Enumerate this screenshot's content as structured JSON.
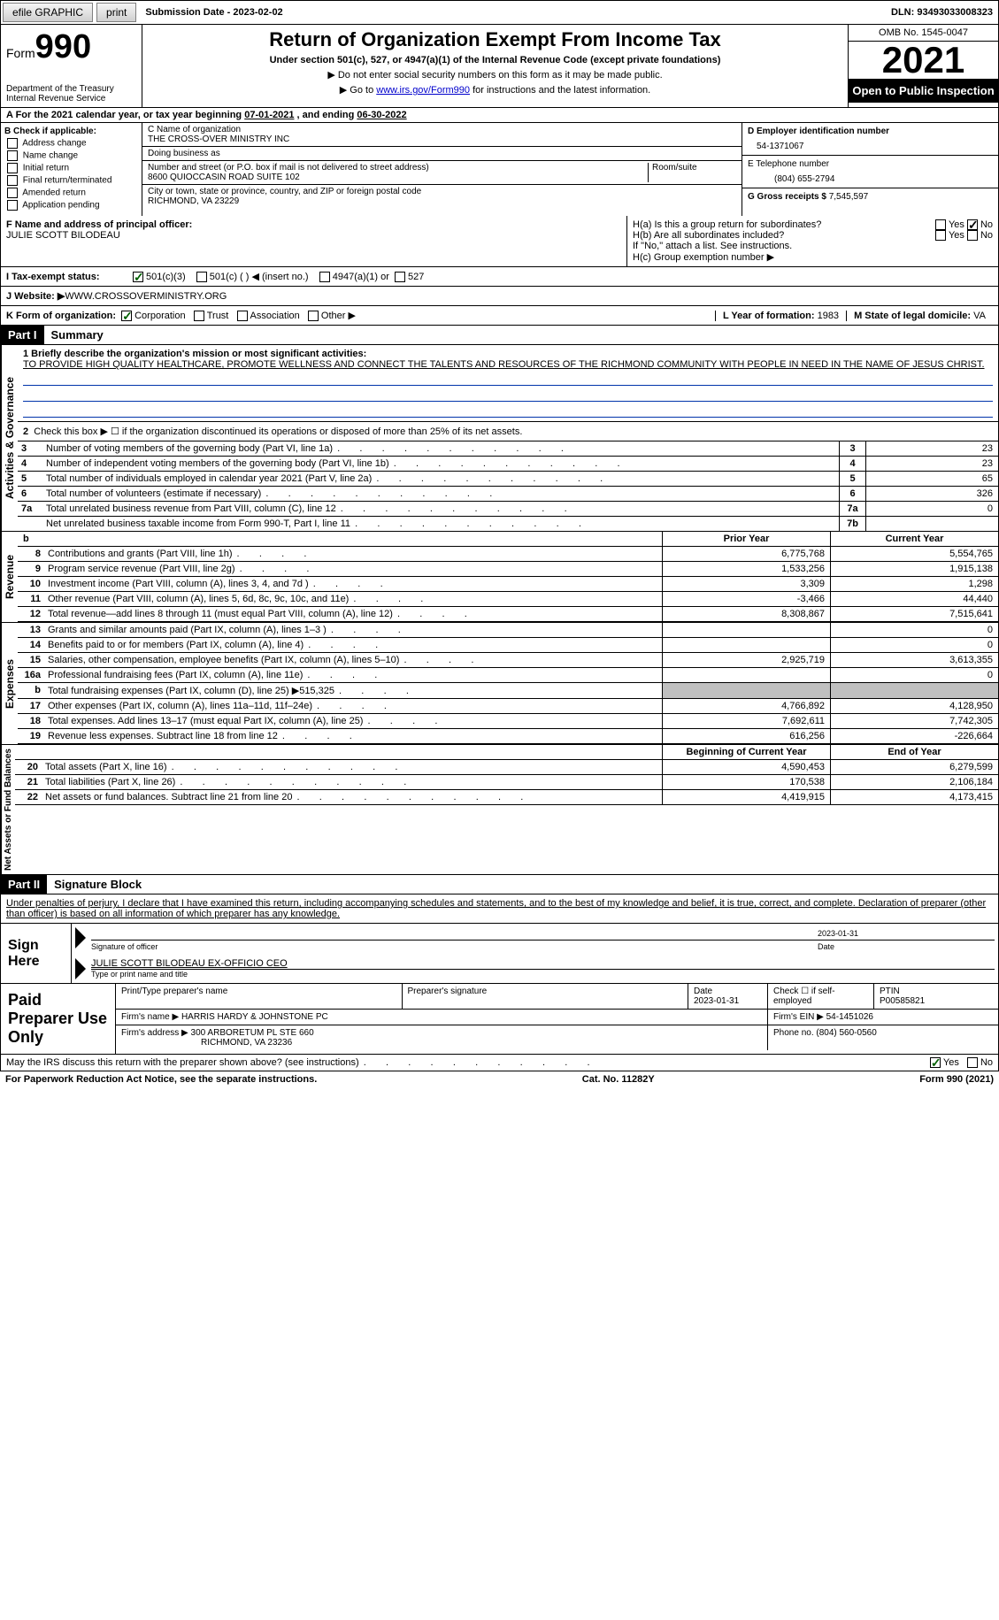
{
  "topbar": {
    "efile": "efile GRAPHIC",
    "print": "print",
    "submission_label": "Submission Date - ",
    "submission_date": "2023-02-02",
    "dln": "DLN: 93493033008323"
  },
  "header": {
    "form_label": "Form",
    "form_number": "990",
    "dept": "Department of the Treasury\nInternal Revenue Service",
    "title": "Return of Organization Exempt From Income Tax",
    "sub": "Under section 501(c), 527, or 4947(a)(1) of the Internal Revenue Code (except private foundations)",
    "note1": "▶ Do not enter social security numbers on this form as it may be made public.",
    "note2_pre": "▶ Go to ",
    "note2_link": "www.irs.gov/Form990",
    "note2_post": " for instructions and the latest information.",
    "omb": "OMB No. 1545-0047",
    "year": "2021",
    "open": "Open to Public Inspection"
  },
  "section_a": {
    "text_pre": "A For the 2021 calendar year, or tax year beginning ",
    "begin": "07-01-2021",
    "mid": "  , and ending ",
    "end": "06-30-2022"
  },
  "col_b": {
    "header": "B Check if applicable:",
    "items": [
      "Address change",
      "Name change",
      "Initial return",
      "Final return/terminated",
      "Amended return",
      "Application pending"
    ]
  },
  "col_c": {
    "name_label": "C Name of organization",
    "name": "THE CROSS-OVER MINISTRY INC",
    "dba_label": "Doing business as",
    "dba": "",
    "addr_label": "Number and street (or P.O. box if mail is not delivered to street address)",
    "room_label": "Room/suite",
    "addr": "8600 QUIOCCASIN ROAD SUITE 102",
    "city_label": "City or town, state or province, country, and ZIP or foreign postal code",
    "city": "RICHMOND, VA  23229"
  },
  "col_d": {
    "d_label": "D Employer identification number",
    "ein": "54-1371067",
    "e_label": "E Telephone number",
    "phone": "(804) 655-2794",
    "g_label": "G Gross receipts $ ",
    "gross": "7,545,597"
  },
  "row_f": {
    "f_label": "F Name and address of principal officer:",
    "officer": "JULIE SCOTT BILODEAU",
    "ha": "H(a)  Is this a group return for subordinates?",
    "ha_no": true,
    "hb": "H(b)  Are all subordinates included?",
    "hb_note": "If \"No,\" attach a list. See instructions.",
    "hc": "H(c)  Group exemption number ▶"
  },
  "row_i": {
    "label": "I   Tax-exempt status:",
    "opt1": "501(c)(3)",
    "opt2": "501(c) (   ) ◀ (insert no.)",
    "opt3": "4947(a)(1) or",
    "opt4": "527"
  },
  "row_j": {
    "label": "J   Website: ▶  ",
    "value": "WWW.CROSSOVERMINISTRY.ORG"
  },
  "row_k": {
    "label": "K Form of organization:",
    "opts": [
      "Corporation",
      "Trust",
      "Association",
      "Other ▶"
    ],
    "l_label": "L Year of formation: ",
    "l_val": "1983",
    "m_label": "M State of legal domicile: ",
    "m_val": "VA"
  },
  "part1": {
    "header": "Part I",
    "title": "Summary",
    "vert1": "Activities & Governance",
    "vert2": "Revenue",
    "vert3": "Expenses",
    "vert4": "Net Assets or Fund Balances",
    "line1_label": "1   Briefly describe the organization's mission or most significant activities:",
    "mission": "TO PROVIDE HIGH QUALITY HEALTHCARE, PROMOTE WELLNESS AND CONNECT THE TALENTS AND RESOURCES OF THE RICHMOND COMMUNITY WITH PEOPLE IN NEED IN THE NAME OF JESUS CHRIST.",
    "line2": "Check this box ▶ ☐  if the organization discontinued its operations or disposed of more than 25% of its net assets.",
    "gov_lines": [
      {
        "n": "3",
        "d": "Number of voting members of the governing body (Part VI, line 1a)",
        "box": "3",
        "v": "23"
      },
      {
        "n": "4",
        "d": "Number of independent voting members of the governing body (Part VI, line 1b)",
        "box": "4",
        "v": "23"
      },
      {
        "n": "5",
        "d": "Total number of individuals employed in calendar year 2021 (Part V, line 2a)",
        "box": "5",
        "v": "65"
      },
      {
        "n": "6",
        "d": "Total number of volunteers (estimate if necessary)",
        "box": "6",
        "v": "326"
      },
      {
        "n": "7a",
        "d": "Total unrelated business revenue from Part VIII, column (C), line 12",
        "box": "7a",
        "v": "0"
      },
      {
        "n": "",
        "d": "Net unrelated business taxable income from Form 990-T, Part I, line 11",
        "box": "7b",
        "v": ""
      }
    ],
    "col_headers": {
      "b": "b",
      "prior": "Prior Year",
      "current": "Current Year"
    },
    "rev_lines": [
      {
        "n": "8",
        "d": "Contributions and grants (Part VIII, line 1h)",
        "p": "6,775,768",
        "c": "5,554,765"
      },
      {
        "n": "9",
        "d": "Program service revenue (Part VIII, line 2g)",
        "p": "1,533,256",
        "c": "1,915,138"
      },
      {
        "n": "10",
        "d": "Investment income (Part VIII, column (A), lines 3, 4, and 7d )",
        "p": "3,309",
        "c": "1,298"
      },
      {
        "n": "11",
        "d": "Other revenue (Part VIII, column (A), lines 5, 6d, 8c, 9c, 10c, and 11e)",
        "p": "-3,466",
        "c": "44,440"
      },
      {
        "n": "12",
        "d": "Total revenue—add lines 8 through 11 (must equal Part VIII, column (A), line 12)",
        "p": "8,308,867",
        "c": "7,515,641"
      }
    ],
    "exp_lines": [
      {
        "n": "13",
        "d": "Grants and similar amounts paid (Part IX, column (A), lines 1–3 )",
        "p": "",
        "c": "0"
      },
      {
        "n": "14",
        "d": "Benefits paid to or for members (Part IX, column (A), line 4)",
        "p": "",
        "c": "0"
      },
      {
        "n": "15",
        "d": "Salaries, other compensation, employee benefits (Part IX, column (A), lines 5–10)",
        "p": "2,925,719",
        "c": "3,613,355"
      },
      {
        "n": "16a",
        "d": "Professional fundraising fees (Part IX, column (A), line 11e)",
        "p": "",
        "c": "0"
      },
      {
        "n": "b",
        "d": "Total fundraising expenses (Part IX, column (D), line 25) ▶515,325",
        "p": "shade",
        "c": "shade"
      },
      {
        "n": "17",
        "d": "Other expenses (Part IX, column (A), lines 11a–11d, 11f–24e)",
        "p": "4,766,892",
        "c": "4,128,950"
      },
      {
        "n": "18",
        "d": "Total expenses. Add lines 13–17 (must equal Part IX, column (A), line 25)",
        "p": "7,692,611",
        "c": "7,742,305"
      },
      {
        "n": "19",
        "d": "Revenue less expenses. Subtract line 18 from line 12",
        "p": "616,256",
        "c": "-226,664"
      }
    ],
    "net_headers": {
      "prior": "Beginning of Current Year",
      "current": "End of Year"
    },
    "net_lines": [
      {
        "n": "20",
        "d": "Total assets (Part X, line 16)",
        "p": "4,590,453",
        "c": "6,279,599"
      },
      {
        "n": "21",
        "d": "Total liabilities (Part X, line 26)",
        "p": "170,538",
        "c": "2,106,184"
      },
      {
        "n": "22",
        "d": "Net assets or fund balances. Subtract line 21 from line 20",
        "p": "4,419,915",
        "c": "4,173,415"
      }
    ]
  },
  "part2": {
    "header": "Part II",
    "title": "Signature Block",
    "decl": "Under penalties of perjury, I declare that I have examined this return, including accompanying schedules and statements, and to the best of my knowledge and belief, it is true, correct, and complete. Declaration of preparer (other than officer) is based on all information of which preparer has any knowledge.",
    "sign_here": "Sign Here",
    "sig_officer": "Signature of officer",
    "sig_date": "Date",
    "sig_date_val": "2023-01-31",
    "officer_name": "JULIE SCOTT BILODEAU  EX-OFFICIO CEO",
    "type_name": "Type or print name and title",
    "paid": "Paid Preparer Use Only",
    "prep_name_label": "Print/Type preparer's name",
    "prep_sig_label": "Preparer's signature",
    "prep_date_label": "Date",
    "prep_date": "2023-01-31",
    "check_if": "Check ☐ if self-employed",
    "ptin_label": "PTIN",
    "ptin": "P00585821",
    "firm_name_label": "Firm's name      ▶ ",
    "firm_name": "HARRIS HARDY & JOHNSTONE PC",
    "firm_ein_label": "Firm's EIN ▶ ",
    "firm_ein": "54-1451026",
    "firm_addr_label": "Firm's address ▶ ",
    "firm_addr": "300 ARBORETUM PL STE 660",
    "firm_city": "RICHMOND, VA  23236",
    "firm_phone_label": "Phone no. ",
    "firm_phone": "(804) 560-0560",
    "may_irs": "May the IRS discuss this return with the preparer shown above? (see instructions)",
    "paperwork": "For Paperwork Reduction Act Notice, see the separate instructions.",
    "cat": "Cat. No. 11282Y",
    "form_foot": "Form 990 (2021)"
  },
  "colors": {
    "link": "#0000cc",
    "black": "#000000",
    "shade": "#c0c0c0"
  }
}
